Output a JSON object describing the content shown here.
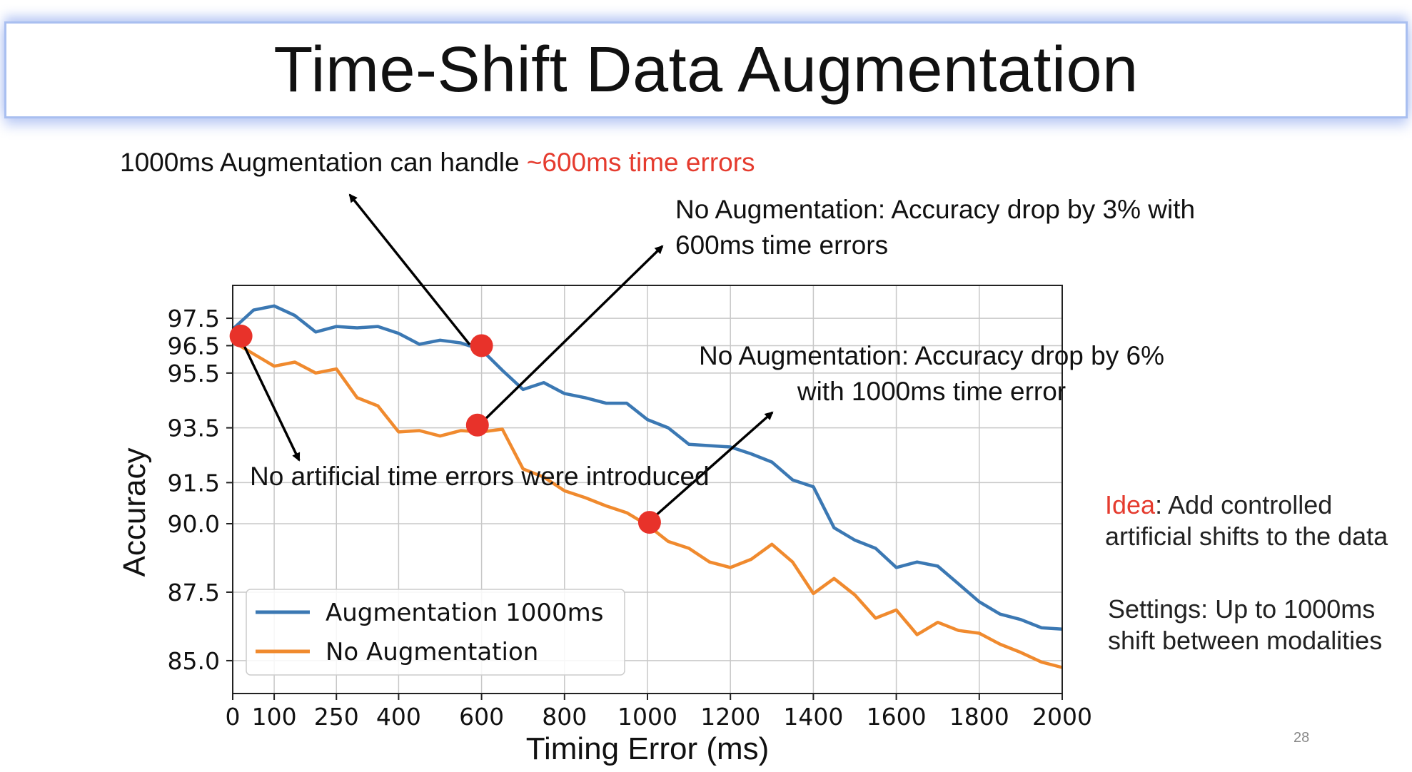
{
  "slide": {
    "title": "Time-Shift Data Augmentation",
    "page_number": "28"
  },
  "annotations": {
    "top_left_prefix": "1000ms Augmentation can handle ",
    "top_left_highlight": "~600ms time errors",
    "drop_600_line1": "No Augmentation: Accuracy drop by 3% with",
    "drop_600_line2": "600ms time errors",
    "drop_1000_line1": "No Augmentation: Accuracy drop by 6%",
    "drop_1000_line2": "with 1000ms time error",
    "no_errors": "No artificial time errors were introduced"
  },
  "side_notes": {
    "idea_label": "Idea",
    "idea_line1_rest": ": Add controlled",
    "idea_line2": "artificial shifts to the data",
    "settings_line1": "Settings: Up to 1000ms",
    "settings_line2": "shift between modalities"
  },
  "colors": {
    "augmentation": "#3b78b3",
    "no_augmentation": "#f08a2e",
    "marker": "#e8322a"
  },
  "chart_data": {
    "type": "line",
    "title": "",
    "xlabel": "Timing Error (ms)",
    "ylabel": "Accuracy",
    "xlim": [
      0,
      2000
    ],
    "ylim": [
      83.8,
      98.7
    ],
    "x_ticks": [
      "0",
      "100",
      "250",
      "400",
      "600",
      "800",
      "1000",
      "1200",
      "1400",
      "1600",
      "1800",
      "2000"
    ],
    "y_ticks": [
      "85.0",
      "87.5",
      "90.0",
      "91.5",
      "93.5",
      "95.5",
      "96.5",
      "97.5"
    ],
    "grid": true,
    "legend_position": "lower-left",
    "series": [
      {
        "name": "Augmentation 1000ms",
        "x": [
          0,
          50,
          100,
          150,
          200,
          250,
          300,
          350,
          400,
          450,
          500,
          550,
          600,
          650,
          700,
          750,
          800,
          850,
          900,
          950,
          1000,
          1050,
          1100,
          1150,
          1200,
          1250,
          1300,
          1350,
          1400,
          1450,
          1500,
          1550,
          1600,
          1650,
          1700,
          1750,
          1800,
          1850,
          1900,
          1950,
          2000
        ],
        "y": [
          97.1,
          97.8,
          97.95,
          97.6,
          97.0,
          97.2,
          97.15,
          97.2,
          96.95,
          96.55,
          96.7,
          96.6,
          96.35,
          95.6,
          94.9,
          95.15,
          94.75,
          94.6,
          94.4,
          94.4,
          93.8,
          93.5,
          92.9,
          92.85,
          92.8,
          92.55,
          92.25,
          91.6,
          91.35,
          89.85,
          89.4,
          89.1,
          88.4,
          88.6,
          88.45,
          87.8,
          87.15,
          86.7,
          86.5,
          86.2,
          86.15
        ]
      },
      {
        "name": "No Augmentation",
        "x": [
          0,
          50,
          100,
          150,
          200,
          250,
          300,
          350,
          400,
          450,
          500,
          550,
          600,
          650,
          700,
          750,
          800,
          850,
          900,
          950,
          1000,
          1050,
          1100,
          1150,
          1200,
          1250,
          1300,
          1350,
          1400,
          1450,
          1500,
          1550,
          1600,
          1650,
          1700,
          1750,
          1800,
          1850,
          1900,
          1950,
          2000
        ],
        "y": [
          96.65,
          96.2,
          95.75,
          95.9,
          95.5,
          95.65,
          94.6,
          94.3,
          93.35,
          93.4,
          93.2,
          93.4,
          93.35,
          93.45,
          92.0,
          91.7,
          91.2,
          90.95,
          90.65,
          90.4,
          89.95,
          89.35,
          89.1,
          88.6,
          88.4,
          88.7,
          89.25,
          88.6,
          87.45,
          88.0,
          87.4,
          86.55,
          86.85,
          85.95,
          86.4,
          86.1,
          86.0,
          85.6,
          85.3,
          84.95,
          84.75
        ]
      }
    ],
    "highlighted_points": [
      {
        "x": 20,
        "y": 96.85
      },
      {
        "x": 600,
        "y": 96.5
      },
      {
        "x": 590,
        "y": 93.6
      },
      {
        "x": 1005,
        "y": 90.05
      }
    ]
  }
}
